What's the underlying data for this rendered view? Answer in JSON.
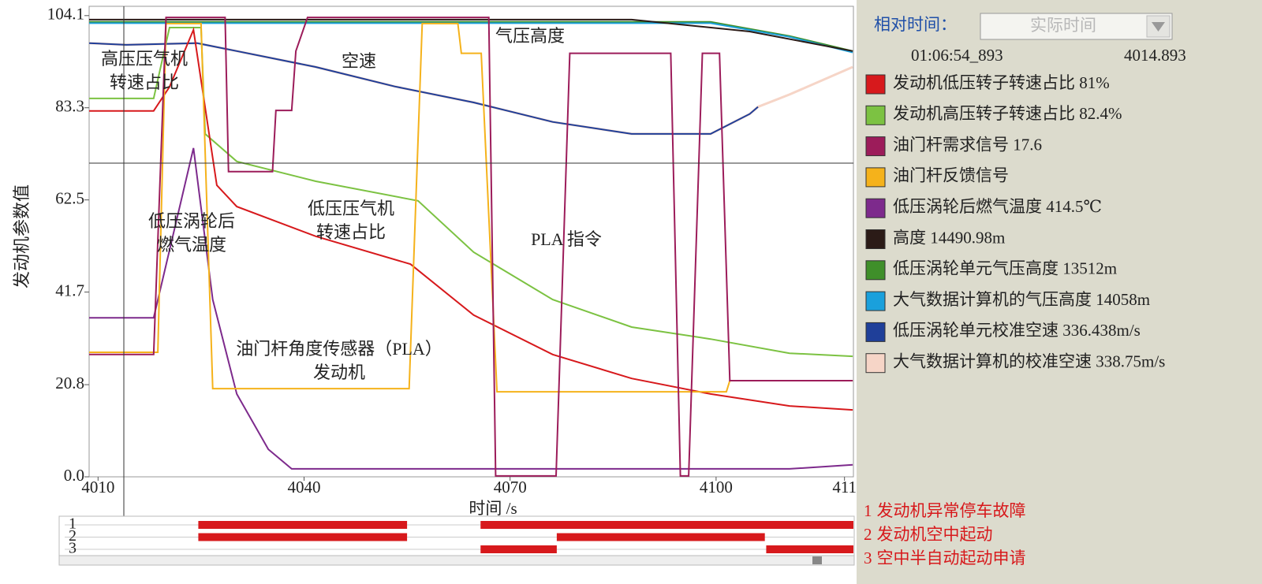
{
  "chart_data": {
    "type": "line",
    "y_label": "发动机参数值",
    "x_label": "时间 /s",
    "xlim": [
      4008.7,
      4120
    ],
    "ylim": [
      0,
      106.2
    ],
    "xticks": [
      4010,
      4040,
      4070,
      4100,
      {
        "value": 4118.7,
        "label": "411"
      }
    ],
    "yticks": [
      {
        "value": 0,
        "label": "0.0"
      },
      20.8,
      41.7,
      62.5,
      83.3,
      104.1
    ],
    "annotations": [
      {
        "lines": [
          "高压压气机",
          "转速占比"
        ]
      },
      {
        "lines": [
          "空速"
        ]
      },
      {
        "lines": [
          "气压高度"
        ]
      },
      {
        "lines": [
          "低压涡轮后",
          "燃气温度"
        ]
      },
      {
        "lines": [
          "低压压气机",
          "转速占比"
        ]
      },
      {
        "lines": [
          "PLA 指令"
        ]
      },
      {
        "lines": [
          "油门杆角度传感器（PLA）",
          "发动机"
        ]
      }
    ],
    "series": [
      {
        "name": "发动机低压转子转速占比 81%",
        "color": "#d7191c",
        "x": [
          4008.7,
          4018.1,
          4020.4,
          4023.9,
          4027.3,
          4030.2,
          4041.7,
          4055.5,
          4064.7,
          4076.2,
          4087.7,
          4099.2,
          4110.7,
          4119.9
        ],
        "values": [
          82.6,
          82.6,
          88,
          100.9,
          65.8,
          61.0,
          54.3,
          48.0,
          36.5,
          27.6,
          22.2,
          18.7,
          16.0,
          15.1
        ]
      },
      {
        "name": "发动机高压转子转速占比 82.4%",
        "color": "#7cc242",
        "x": [
          4008.7,
          4018.1,
          4020.4,
          4025.0,
          4025.6,
          4030.2,
          4041.7,
          4056.6,
          4064.7,
          4076.2,
          4087.7,
          4099.2,
          4110.7,
          4119.9
        ],
        "values": [
          85.4,
          85.4,
          101.4,
          101.4,
          77.4,
          71.2,
          66.7,
          62.3,
          50.7,
          40.0,
          33.8,
          31.1,
          27.9,
          27.2
        ]
      },
      {
        "name": "油门杆需求信号 17.6",
        "color": "#9c1c5a",
        "x": [
          4008.7,
          4018.1,
          4019.9,
          4028.5,
          4029.0,
          4035.4,
          4035.9,
          4038.2,
          4038.8,
          4040.5,
          4066.9,
          4067.9,
          4076.7,
          4078.7,
          4093.4,
          4094.8,
          4096.0,
          4098.0,
          4100.5,
          4102.0,
          4119.9
        ],
        "values": [
          27.6,
          27.6,
          103.7,
          103.7,
          68.9,
          68.9,
          82.7,
          82.7,
          96.1,
          103.7,
          103.7,
          0.2,
          0.2,
          95.6,
          95.6,
          0.2,
          0.2,
          95.6,
          95.6,
          21.7,
          21.7
        ]
      },
      {
        "name": "油门杆反馈信号",
        "color": "#f5b21b",
        "x": [
          4008.7,
          4018.7,
          4019.9,
          4025.0,
          4026.7,
          4055.3,
          4057.2,
          4062.4,
          4062.9,
          4065.8,
          4068.1,
          4101.5,
          4102.0,
          4119.9
        ],
        "values": [
          28.1,
          28.1,
          102.3,
          102.3,
          19.9,
          19.9,
          102.3,
          102.3,
          95.6,
          95.6,
          19.2,
          19.2,
          21.7,
          21.7
        ]
      },
      {
        "name": "低压涡轮后燃气温度 414.5℃",
        "color": "#7d2a8c",
        "x": [
          4008.7,
          4018.1,
          4023.9,
          4026.7,
          4030.2,
          4034.8,
          4038.2,
          4110.7,
          4119.9
        ],
        "values": [
          35.9,
          35.9,
          74.2,
          40.0,
          18.7,
          6.2,
          1.8,
          1.8,
          2.7
        ]
      },
      {
        "name": "高度 14490.98m",
        "color": "#2b1b17",
        "x": [
          4008.7,
          4087.7,
          4104.9,
          4119.9
        ],
        "values": [
          103.2,
          103.2,
          100.5,
          96.1
        ]
      },
      {
        "name": "低压涡轮单元气压高度 13512m",
        "color": "#3f8f2a",
        "x": [
          4008.7,
          4099.2,
          4110.7,
          4119.9
        ],
        "values": [
          102.7,
          102.7,
          99.5,
          96.1
        ]
      },
      {
        "name": "大气数据计算机的气压高度 14058m",
        "color": "#1aa0dc",
        "x": [
          4008.7,
          4099.2,
          4110.7,
          4119.9
        ],
        "values": [
          102.4,
          102.4,
          99.3,
          95.8
        ]
      },
      {
        "name": "低压涡轮单元校准空速 336.438m/s",
        "color": "#1f3f99",
        "x": [
          4008.7,
          4014.1,
          4024.4,
          4030.2,
          4041.7,
          4053.2,
          4064.7,
          4076.2,
          4087.7,
          4099.2,
          4104.9,
          4106.1
        ],
        "values": [
          97.9,
          97.5,
          97.9,
          96.1,
          92.5,
          88.1,
          84.5,
          80.1,
          77.4,
          77.4,
          81.9,
          83.5
        ]
      },
      {
        "name": "大气数据计算机的校准空速 338.75m/s",
        "color": "#f6d5c7",
        "x": [
          4008.7,
          4014.1,
          4024.4,
          4030.2,
          4041.7,
          4053.2,
          4064.7,
          4076.2,
          4087.7,
          4099.2,
          4104.9,
          4106.1,
          4110.7,
          4119.9
        ],
        "values": [
          97.9,
          97.5,
          97.9,
          96.1,
          92.5,
          88.1,
          84.5,
          80.1,
          77.4,
          77.4,
          81.9,
          83.5,
          86.3,
          92.5
        ]
      }
    ]
  },
  "cursor_panel": {
    "mode_label": "相对时间：",
    "mode_select": "实际时间",
    "clock": "01:06:54_893",
    "time": 4014.893
  },
  "events": [
    {
      "id": "1",
      "name": "发动机异常停车故障",
      "spans": [
        [
          4024.6,
          4055.0
        ],
        [
          4065.7,
          4120
        ]
      ]
    },
    {
      "id": "2",
      "name": "发动机空中起动",
      "spans": [
        [
          4024.6,
          4055.0
        ],
        [
          4076.8,
          4107.1
        ]
      ]
    },
    {
      "id": "3",
      "name": "空中半自动起动申请",
      "spans": [
        [
          4065.7,
          4076.8
        ],
        [
          4107.3,
          4120
        ]
      ]
    }
  ]
}
